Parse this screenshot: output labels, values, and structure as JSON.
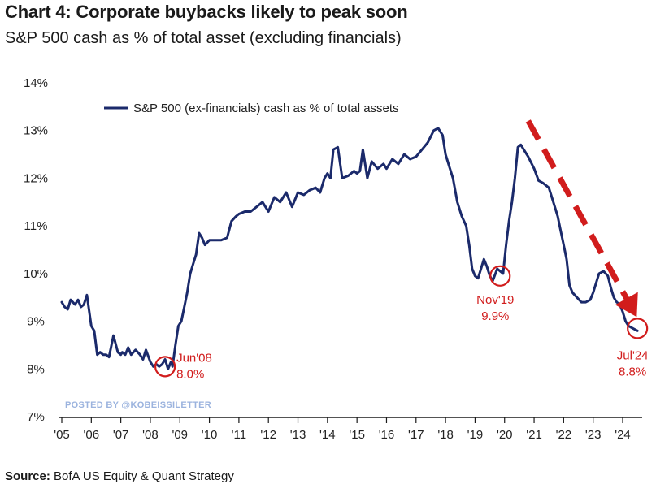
{
  "header": {
    "title": "Chart 4: Corporate buybacks likely to peak soon",
    "subtitle": "S&P 500 cash as % of total asset (excluding financials)"
  },
  "footer": {
    "source_label": "Source:",
    "source_text": "BofA US Equity & Quant Strategy"
  },
  "watermark": "POSTED BY @KOBEISSILETTER",
  "colors": {
    "line": "#1b2a6b",
    "highlight": "#d11c1c",
    "watermark": "#9bb3de"
  },
  "chart_data": {
    "type": "line",
    "title": "Chart 4: Corporate buybacks likely to peak soon",
    "subtitle": "S&P 500 cash as % of total asset (excluding financials)",
    "xlabel": "",
    "ylabel": "",
    "xlim": [
      2005.0,
      2025.0
    ],
    "ylim": [
      7,
      14
    ],
    "y_ticks": [
      7,
      8,
      9,
      10,
      11,
      12,
      13,
      14
    ],
    "y_tick_labels": [
      "7%",
      "8%",
      "9%",
      "10%",
      "11%",
      "12%",
      "13%",
      "14%"
    ],
    "x_ticks": [
      2005,
      2006,
      2007,
      2008,
      2009,
      2010,
      2011,
      2012,
      2013,
      2014,
      2015,
      2016,
      2017,
      2018,
      2019,
      2020,
      2021,
      2022,
      2023,
      2024
    ],
    "x_tick_labels": [
      "'05",
      "'06",
      "'07",
      "'08",
      "'09",
      "'10",
      "'11",
      "'12",
      "'13",
      "'14",
      "'15",
      "'16",
      "'17",
      "'18",
      "'19",
      "'20",
      "'21",
      "'22",
      "'23",
      "'24"
    ],
    "legend": {
      "label": "S&P 500 (ex-financials) cash as % of total assets",
      "position": "top-left"
    },
    "series": [
      {
        "name": "S&P 500 (ex-financials) cash as % of total assets",
        "x": [
          2005.0,
          2005.1,
          2005.2,
          2005.3,
          2005.45,
          2005.55,
          2005.65,
          2005.75,
          2005.85,
          2006.0,
          2006.1,
          2006.2,
          2006.3,
          2006.4,
          2006.5,
          2006.6,
          2006.75,
          2006.9,
          2007.0,
          2007.05,
          2007.15,
          2007.25,
          2007.35,
          2007.5,
          2007.65,
          2007.75,
          2007.85,
          2008.0,
          2008.1,
          2008.2,
          2008.3,
          2008.4,
          2008.5,
          2008.6,
          2008.7,
          2008.75,
          2008.85,
          2008.95,
          2009.05,
          2009.15,
          2009.25,
          2009.35,
          2009.45,
          2009.55,
          2009.65,
          2009.75,
          2009.85,
          2010.0,
          2010.2,
          2010.4,
          2010.6,
          2010.75,
          2010.9,
          2011.0,
          2011.2,
          2011.4,
          2011.6,
          2011.8,
          2012.0,
          2012.2,
          2012.4,
          2012.6,
          2012.8,
          2013.0,
          2013.2,
          2013.4,
          2013.6,
          2013.75,
          2013.9,
          2014.0,
          2014.1,
          2014.2,
          2014.35,
          2014.5,
          2014.7,
          2014.9,
          2015.0,
          2015.1,
          2015.2,
          2015.35,
          2015.5,
          2015.7,
          2015.9,
          2016.0,
          2016.2,
          2016.4,
          2016.6,
          2016.8,
          2017.0,
          2017.2,
          2017.4,
          2017.6,
          2017.75,
          2017.9,
          2018.0,
          2018.1,
          2018.25,
          2018.4,
          2018.55,
          2018.7,
          2018.8,
          2018.9,
          2019.0,
          2019.1,
          2019.2,
          2019.3,
          2019.4,
          2019.5,
          2019.6,
          2019.75,
          2019.85,
          2019.95,
          2020.05,
          2020.15,
          2020.25,
          2020.35,
          2020.45,
          2020.55,
          2020.65,
          2020.8,
          2021.0,
          2021.15,
          2021.3,
          2021.5,
          2021.65,
          2021.8,
          2021.9,
          2022.0,
          2022.1,
          2022.2,
          2022.3,
          2022.45,
          2022.6,
          2022.75,
          2022.9,
          2023.0,
          2023.1,
          2023.2,
          2023.35,
          2023.5,
          2023.6,
          2023.7,
          2023.8,
          2023.9,
          2024.0,
          2024.1,
          2024.2,
          2024.35,
          2024.5
        ],
        "values": [
          9.4,
          9.3,
          9.25,
          9.45,
          9.35,
          9.45,
          9.3,
          9.35,
          9.55,
          8.9,
          8.8,
          8.3,
          8.35,
          8.3,
          8.3,
          8.25,
          8.7,
          8.35,
          8.3,
          8.35,
          8.3,
          8.45,
          8.3,
          8.4,
          8.3,
          8.2,
          8.4,
          8.15,
          8.05,
          8.1,
          8.05,
          8.1,
          8.2,
          8.0,
          8.15,
          8.05,
          8.5,
          8.9,
          9.0,
          9.3,
          9.6,
          10.0,
          10.2,
          10.4,
          10.85,
          10.75,
          10.6,
          10.7,
          10.7,
          10.7,
          10.75,
          11.1,
          11.2,
          11.25,
          11.3,
          11.3,
          11.4,
          11.5,
          11.3,
          11.6,
          11.5,
          11.7,
          11.4,
          11.7,
          11.65,
          11.75,
          11.8,
          11.7,
          12.0,
          12.1,
          12.0,
          12.6,
          12.65,
          12.0,
          12.05,
          12.15,
          12.1,
          12.15,
          12.6,
          12.0,
          12.35,
          12.2,
          12.3,
          12.2,
          12.4,
          12.3,
          12.5,
          12.4,
          12.45,
          12.6,
          12.75,
          13.0,
          13.05,
          12.9,
          12.5,
          12.3,
          12.0,
          11.5,
          11.2,
          11.0,
          10.6,
          10.1,
          9.95,
          9.9,
          10.1,
          10.3,
          10.15,
          9.95,
          9.85,
          10.1,
          10.05,
          10.0,
          10.6,
          11.1,
          11.5,
          12.0,
          12.65,
          12.7,
          12.6,
          12.45,
          12.2,
          11.95,
          11.9,
          11.8,
          11.5,
          11.2,
          10.9,
          10.6,
          10.3,
          9.75,
          9.6,
          9.5,
          9.4,
          9.4,
          9.45,
          9.6,
          9.8,
          10.0,
          10.05,
          9.95,
          9.7,
          9.5,
          9.4,
          9.35,
          9.2,
          9.0,
          8.9,
          8.85,
          8.8
        ]
      }
    ],
    "annotations": [
      {
        "label": "Jun'08",
        "value_label": "8.0%",
        "x": 2008.5,
        "y": 8.05
      },
      {
        "label": "Nov'19",
        "value_label": "9.9%",
        "x": 2019.85,
        "y": 9.95
      },
      {
        "label": "Jul'24",
        "value_label": "8.8%",
        "x": 2024.5,
        "y": 8.85
      }
    ],
    "trend_arrow": {
      "from": [
        2020.8,
        13.2
      ],
      "to": [
        2024.2,
        9.4
      ],
      "style": "dashed",
      "color": "#d11c1c"
    }
  }
}
